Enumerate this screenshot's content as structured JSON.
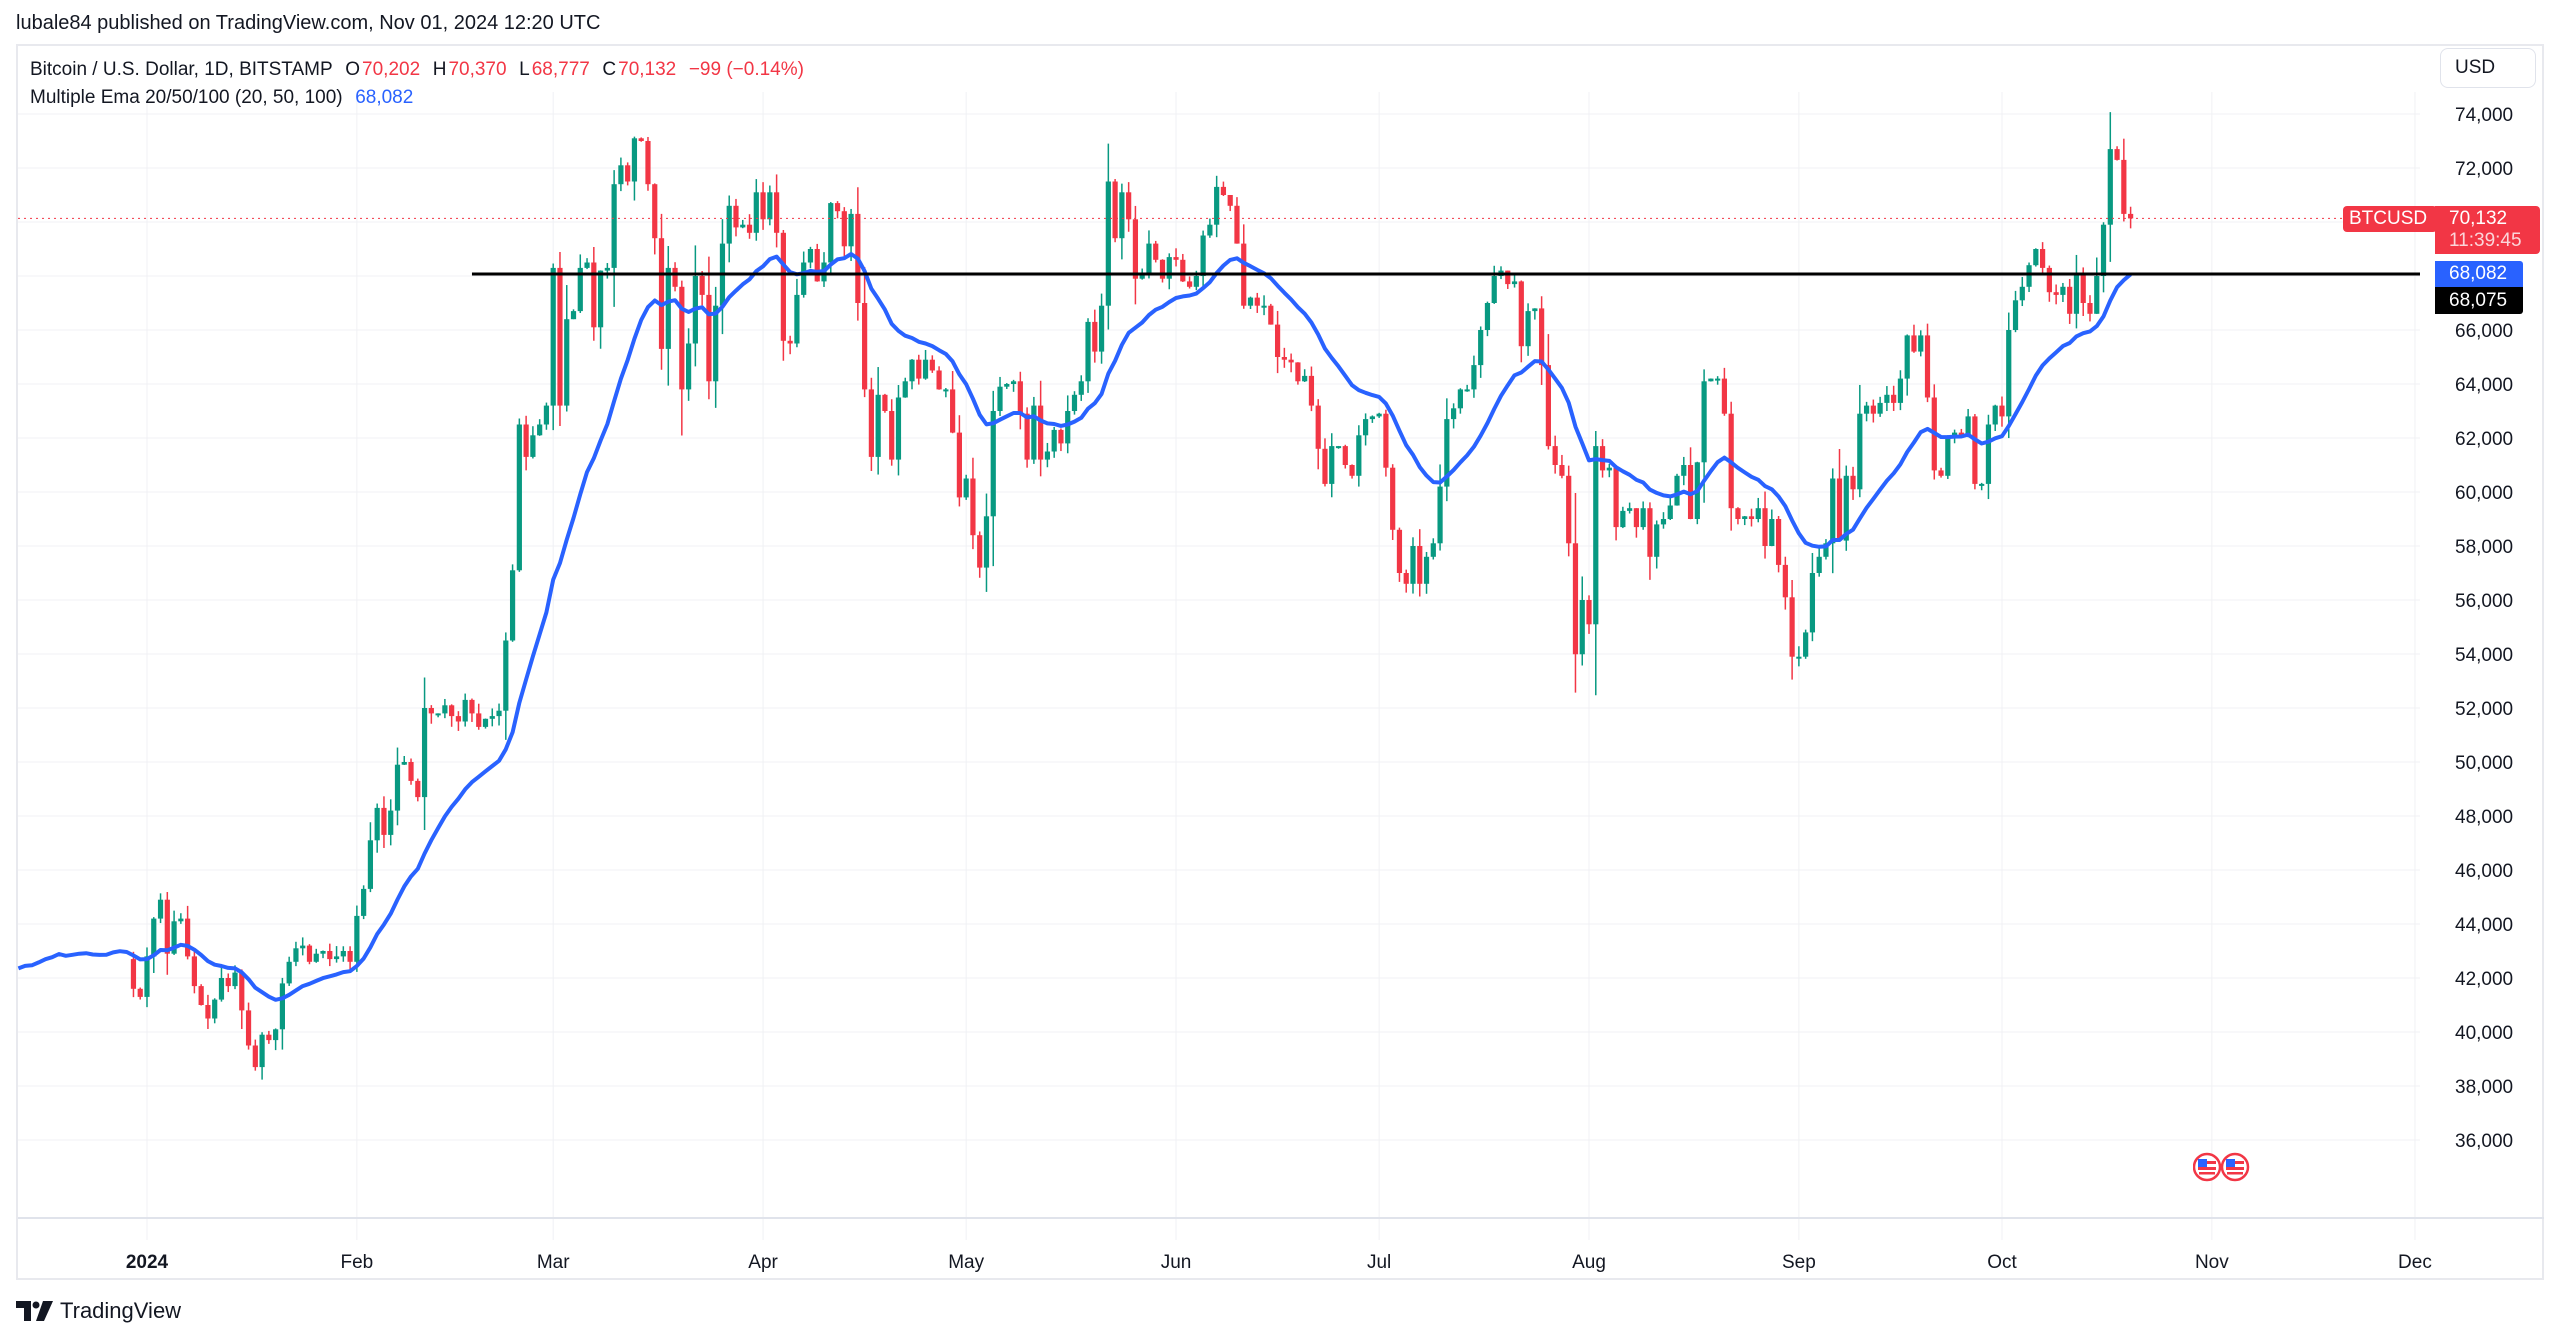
{
  "header": {
    "published": "lubale84 published on TradingView.com, Nov 01, 2024 12:20 UTC"
  },
  "legend": {
    "symbol": "Bitcoin / U.S. Dollar, 1D, BITSTAMP",
    "o_label": "O",
    "o_value": "70,202",
    "h_label": "H",
    "h_value": "70,370",
    "l_label": "L",
    "l_value": "68,777",
    "c_label": "C",
    "c_value": "70,132",
    "change": "−99 (−0.14%)",
    "indicator": "Multiple Ema 20/50/100 (20, 50, 100)",
    "indicator_value": "68,082"
  },
  "currency_button": "USD",
  "price_tags": {
    "symbol_tag": "BTCUSD",
    "last_price": "70,132",
    "countdown": "11:39:45",
    "ema_value": "68,082",
    "line_value": "68,075"
  },
  "footer": {
    "brand": "TradingView"
  },
  "colors": {
    "up": "#089981",
    "down": "#f23645",
    "ema": "#2962ff",
    "hline": "#000000",
    "grid": "#f0f1f4"
  },
  "chart_data": {
    "type": "candlestick",
    "title": "Bitcoin / U.S. Dollar, 1D, BITSTAMP",
    "xlabel": "",
    "ylabel": "USD",
    "ylim": [
      34500,
      75500
    ],
    "y_ticks": [
      "36,000",
      "38,000",
      "40,000",
      "42,000",
      "44,000",
      "46,000",
      "48,000",
      "50,000",
      "52,000",
      "54,000",
      "56,000",
      "58,000",
      "60,000",
      "62,000",
      "64,000",
      "66,000",
      "68,000",
      "70,000",
      "72,000",
      "74,000"
    ],
    "x_ticks": [
      {
        "label": "2024",
        "day": 0,
        "bold": true
      },
      {
        "label": "Feb",
        "day": 31
      },
      {
        "label": "Mar",
        "day": 60
      },
      {
        "label": "Apr",
        "day": 91
      },
      {
        "label": "May",
        "day": 121
      },
      {
        "label": "Jun",
        "day": 152
      },
      {
        "label": "Jul",
        "day": 182
      },
      {
        "label": "Aug",
        "day": 213
      },
      {
        "label": "Sep",
        "day": 244
      },
      {
        "label": "Oct",
        "day": 274
      },
      {
        "label": "Nov",
        "day": 305
      },
      {
        "label": "Dec",
        "day": 335
      }
    ],
    "horizontal_line": 68075,
    "last_price": 70132,
    "ema_last": 68082,
    "start_day_offset": -20,
    "closes": [
      42300,
      42900,
      43300,
      42700,
      43600,
      43800,
      43500,
      44000,
      42200,
      43200,
      43300,
      43100,
      42400,
      42700,
      42900,
      43800,
      43400,
      42700,
      41600,
      41300,
      42800,
      44200,
      44900,
      42900,
      44100,
      44200,
      42800,
      41700,
      41000,
      40500,
      41200,
      42000,
      41700,
      42200,
      40800,
      39500,
      38700,
      39900,
      39700,
      40100,
      41800,
      42600,
      43100,
      43200,
      42600,
      42900,
      43000,
      42700,
      42800,
      43000,
      42600,
      44300,
      45300,
      47100,
      48300,
      47300,
      48200,
      49900,
      50000,
      49300,
      48700,
      52000,
      51800,
      51800,
      52100,
      51700,
      51500,
      52300,
      51800,
      51300,
      51600,
      51700,
      51900,
      54500,
      57100,
      62500,
      61300,
      62100,
      62500,
      63200,
      68300,
      63200,
      66400,
      66700,
      68300,
      68500,
      66100,
      68200,
      68300,
      71400,
      72100,
      71500,
      73100,
      73000,
      71400,
      69400,
      65300,
      68300,
      67600,
      63800,
      65500,
      68000,
      67300,
      64100,
      66900,
      69200,
      70600,
      69800,
      69900,
      69600,
      71100,
      70100,
      71100,
      69600,
      65600,
      65500,
      67300,
      68500,
      69000,
      67800,
      68500,
      70700,
      70400,
      69100,
      70300,
      67000,
      63800,
      61300,
      63600,
      63000,
      61200,
      63500,
      64100,
      64900,
      64200,
      64900,
      64500,
      63800,
      63800,
      62200,
      59800,
      60500,
      58400,
      57200,
      59100,
      63000,
      63900,
      64000,
      64100,
      62900,
      61200,
      63200,
      61200,
      61500,
      62300,
      61800,
      63000,
      63600,
      64100,
      66300,
      65200,
      66900,
      71500,
      69400,
      71100,
      70100,
      67900,
      68100,
      69200,
      68600,
      67900,
      68700,
      68600,
      67800,
      67600,
      68000,
      69500,
      69900,
      71300,
      71000,
      70600,
      69200,
      66900,
      67200,
      66900,
      66900,
      66200,
      65000,
      64900,
      64800,
      64100,
      64300,
      63200,
      61600,
      60300,
      61700,
      61700,
      61000,
      60600,
      62100,
      62700,
      62800,
      62900,
      60900,
      58600,
      57000,
      56600,
      58000,
      56600,
      57600,
      58100,
      60200,
      62700,
      63100,
      63800,
      63800,
      64700,
      66000,
      67000,
      68000,
      68200,
      67700,
      67800,
      65400,
      66700,
      66800,
      64700,
      61700,
      61000,
      60600,
      58100,
      53990,
      56000,
      55100,
      61700,
      60800,
      60900,
      58700,
      59300,
      59400,
      58700,
      59400,
      57600,
      58800,
      59000,
      59500,
      60600,
      61000,
      59000,
      61100,
      64100,
      64200,
      64200,
      62900,
      59400,
      59000,
      59100,
      59000,
      59400,
      58000,
      59000,
      57300,
      56100,
      53900,
      53900,
      54800,
      57000,
      57600,
      58100,
      60500,
      58200,
      60600,
      60100,
      62900,
      63200,
      62900,
      63300,
      63600,
      63300,
      64200,
      65800,
      65200,
      65800,
      63500,
      60800,
      60600,
      62000,
      62200,
      62100,
      62800,
      60300,
      60300,
      62500,
      63200,
      62800,
      66000,
      67100,
      67600,
      68400,
      69000,
      68300,
      67400,
      67300,
      67600,
      66600,
      68100,
      67000,
      66600,
      68000,
      69900,
      72700,
      72300,
      70300,
      70132
    ]
  }
}
